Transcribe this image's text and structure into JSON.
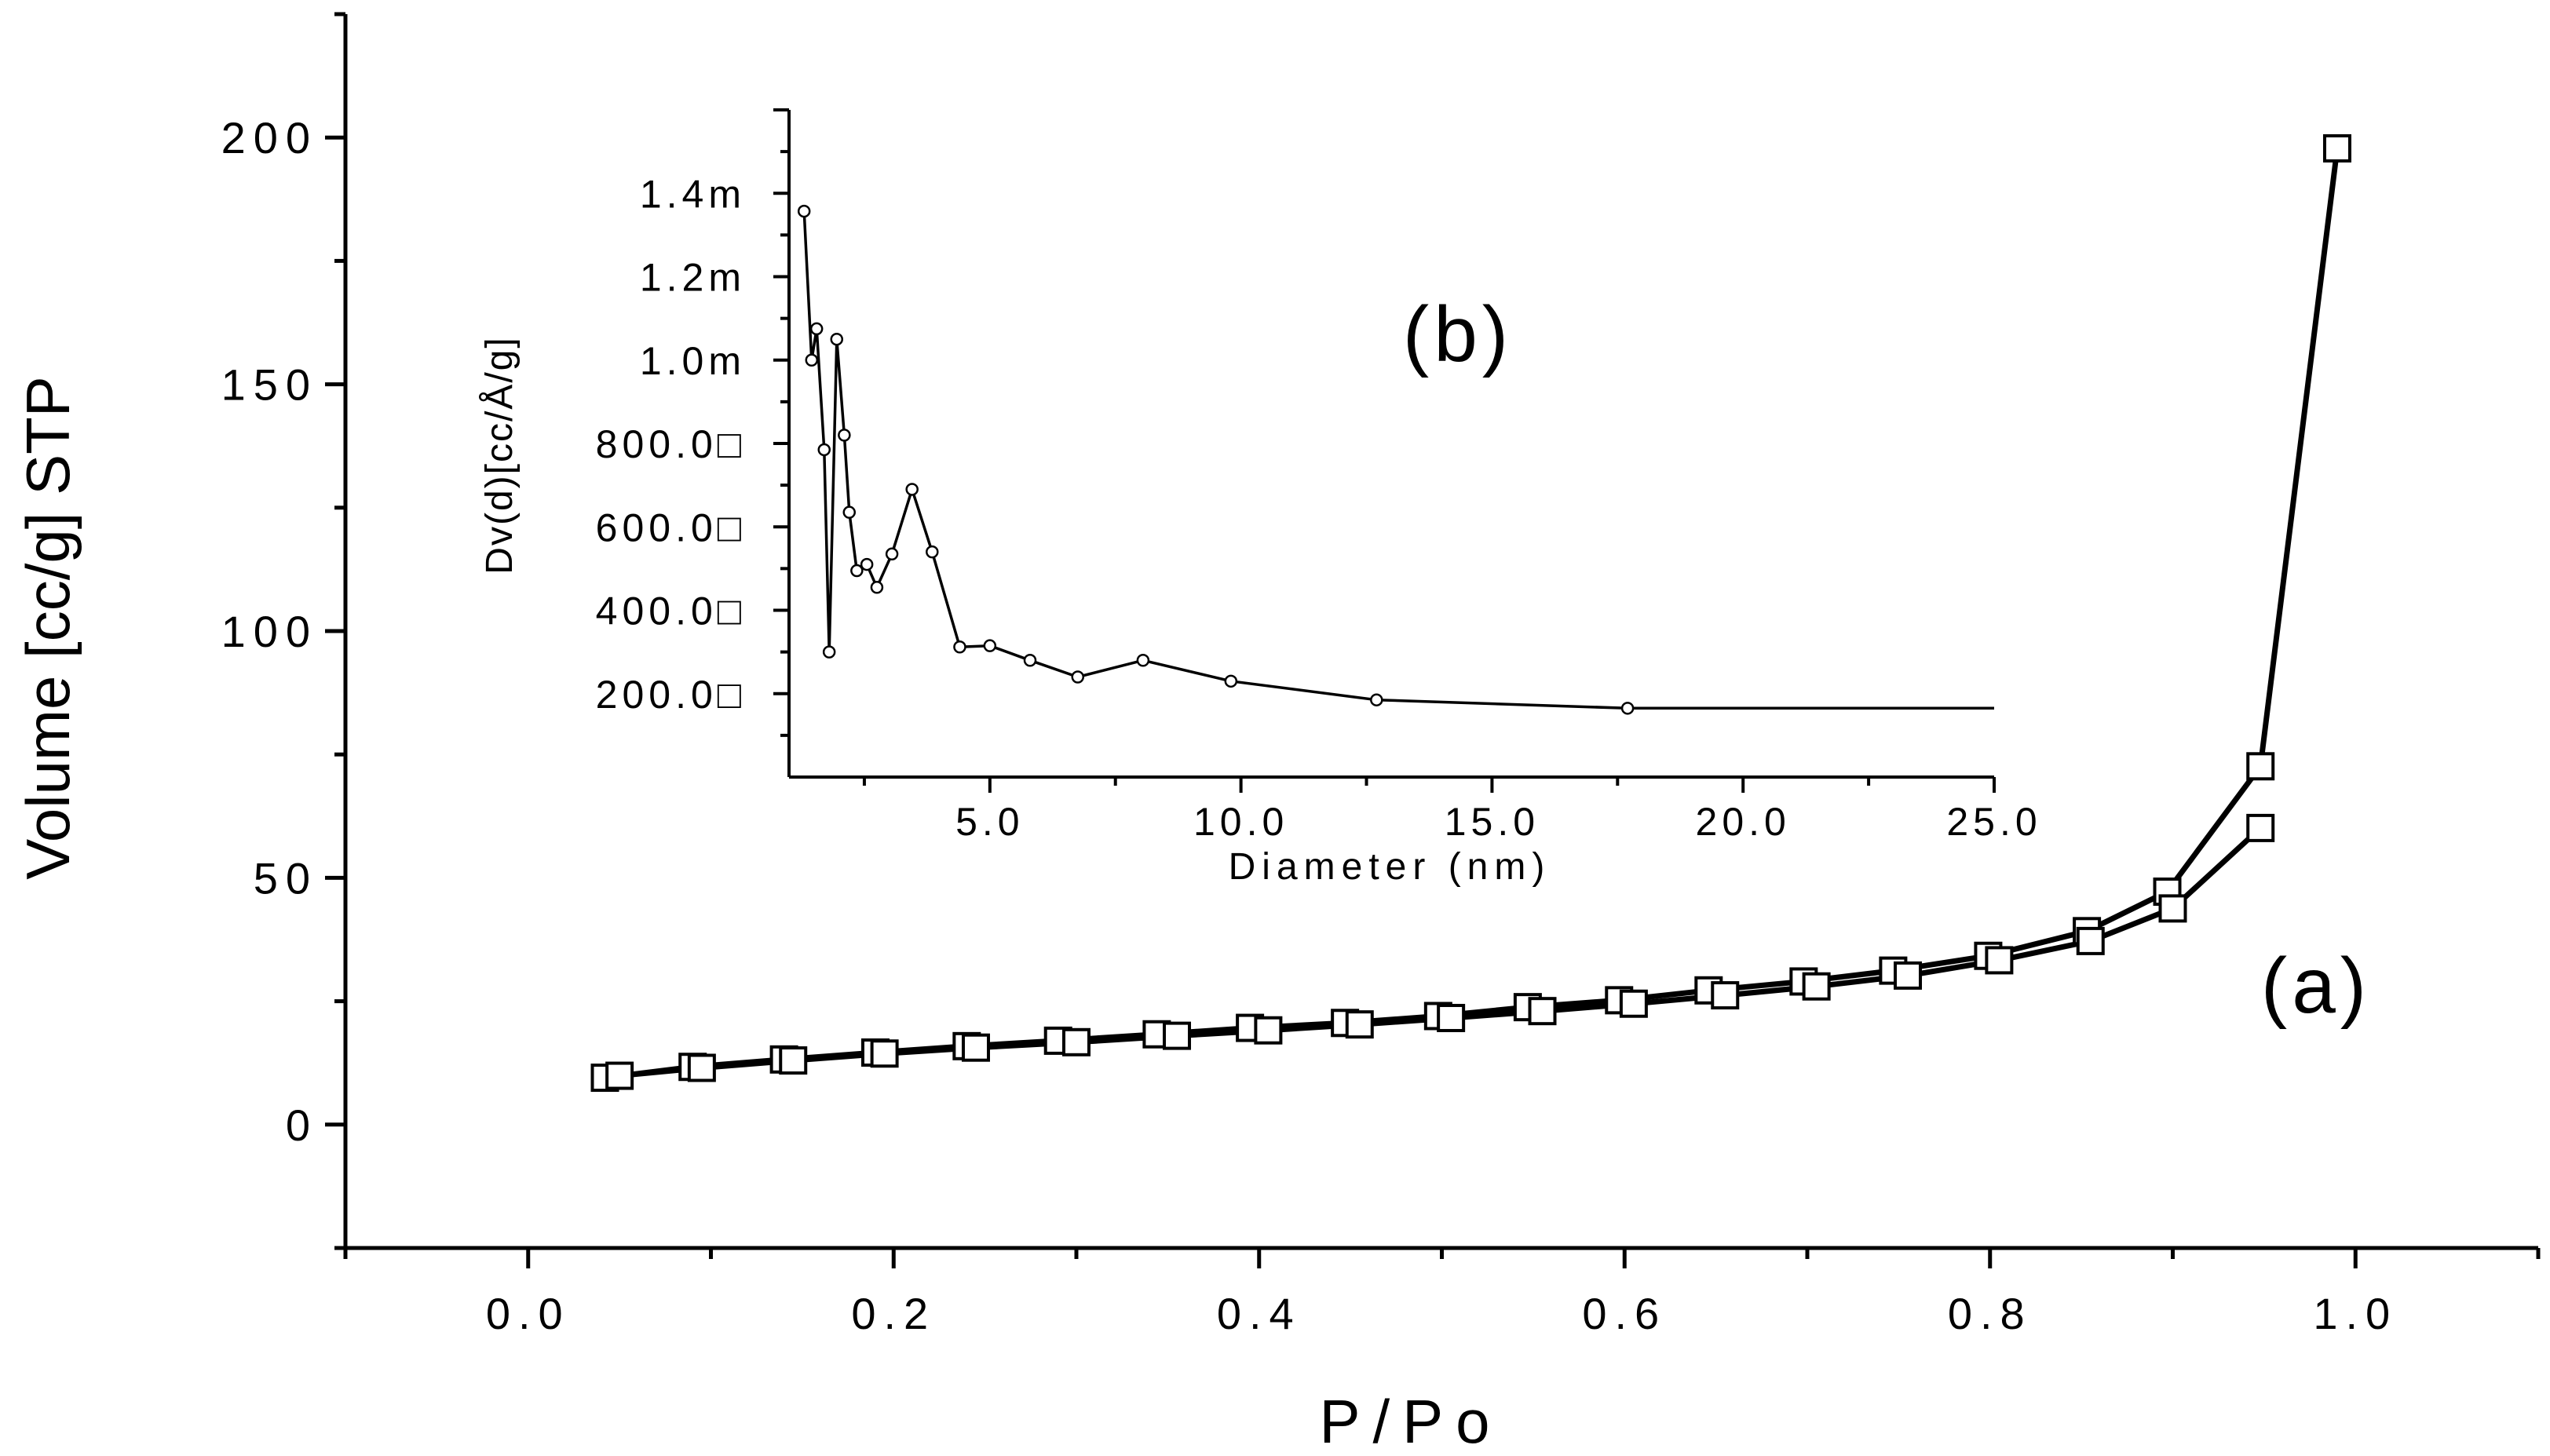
{
  "chart_data": [
    {
      "type": "line",
      "panel_label": "(a)",
      "xlabel": "P/Po",
      "ylabel": "Volume [cc/g] STP",
      "xlim": [
        -0.1,
        1.1
      ],
      "ylim": [
        -25,
        225
      ],
      "x_ticks": [
        0.0,
        0.2,
        0.4,
        0.6,
        0.8,
        1.0
      ],
      "x_tick_labels": [
        "0.0",
        "0.2",
        "0.4",
        "0.6",
        "0.8",
        "1.0"
      ],
      "y_ticks": [
        0,
        50,
        100,
        150,
        200
      ],
      "y_tick_labels": [
        "0",
        "50",
        "100",
        "150",
        "200"
      ],
      "grid": false,
      "legend": "none",
      "marker": "square-open",
      "series": [
        {
          "x": [
            0.042,
            0.09,
            0.14,
            0.19,
            0.24,
            0.29,
            0.344,
            0.395,
            0.447,
            0.498,
            0.547,
            0.597,
            0.646,
            0.698,
            0.747,
            0.799,
            0.853,
            0.897,
            0.948,
            0.99
          ],
          "y": [
            9.5,
            11.7,
            13.2,
            14.6,
            15.9,
            17.0,
            18.3,
            19.6,
            20.6,
            22.0,
            23.8,
            25.2,
            27.2,
            29.0,
            31.2,
            34.2,
            39.2,
            47.2,
            72.6,
            197.8
          ]
        },
        {
          "x": [
            0.05,
            0.095,
            0.145,
            0.195,
            0.245,
            0.3,
            0.355,
            0.405,
            0.455,
            0.505,
            0.555,
            0.605,
            0.655,
            0.705,
            0.755,
            0.805,
            0.855,
            0.9,
            0.948
          ],
          "y": [
            9.9,
            11.5,
            13.0,
            14.4,
            15.6,
            16.7,
            18.0,
            19.1,
            20.3,
            21.6,
            23.0,
            24.5,
            26.2,
            28.0,
            30.2,
            33.3,
            37.2,
            43.8,
            60.1
          ]
        }
      ]
    },
    {
      "type": "line",
      "panel_label": "(b)",
      "xlabel": "Diameter (nm)",
      "ylabel": "Dv(d)[cc/Å/g]",
      "xlim": [
        1.0,
        25.0
      ],
      "ylim": [
        0.0,
        1.6
      ],
      "x_ticks": [
        5.0,
        10.0,
        15.0,
        20.0,
        25.0
      ],
      "x_tick_labels": [
        "5.0",
        "10.0",
        "15.0",
        "20.0",
        "25.0"
      ],
      "y_ticks": [
        0.2,
        0.4,
        0.6,
        0.8,
        1.0,
        1.2,
        1.4
      ],
      "y_tick_labels": [
        "200.0□",
        "400.0□",
        "600.0□",
        "800.0□",
        "1.0m",
        "1.2m",
        "1.4m"
      ],
      "grid": false,
      "legend": "none",
      "marker": "circle-open",
      "series": [
        {
          "x": [
            1.3,
            1.45,
            1.55,
            1.7,
            1.8,
            1.95,
            2.1,
            2.2,
            2.35,
            2.55,
            2.75,
            3.05,
            3.45,
            3.85,
            4.4,
            5.0,
            5.8,
            6.75,
            8.05,
            9.8,
            12.7,
            17.7,
            25.0
          ],
          "y": [
            1.357,
            1.0,
            1.075,
            0.785,
            0.3,
            1.05,
            0.82,
            0.635,
            0.495,
            0.51,
            0.455,
            0.535,
            0.69,
            0.54,
            0.312,
            0.315,
            0.28,
            0.24,
            0.28,
            0.23,
            0.185,
            0.165,
            0.165
          ]
        }
      ]
    }
  ]
}
